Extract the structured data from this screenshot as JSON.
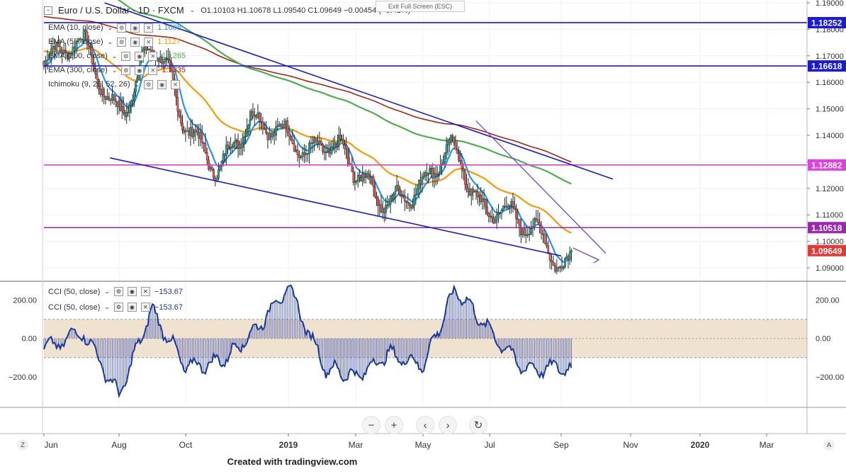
{
  "header": {
    "symbol": "Euro / U.S. Dollar · 1D · FXCM",
    "ohlc": "O1.10103  H1.10678  L1.09540  C1.09649  −0.00454 (−0.41%)",
    "fullscreen_hint": "Exit Full Screen (ESC)"
  },
  "legend": [
    {
      "label": "EMA (10, close)",
      "value": "1.1008",
      "color": "#2196f3"
    },
    {
      "label": "EMA (55, close)",
      "value": "1.1127",
      "color": "#ff9800"
    },
    {
      "label": "EMA (200, close)",
      "value": "1.1265",
      "color": "#4caf50"
    },
    {
      "label": "EMA (300, close)",
      "value": "1.1335",
      "color": "#a52714"
    },
    {
      "label": "Ichimoku (9, 26, 52, 26)",
      "value": "",
      "color": "#777777"
    }
  ],
  "cci_legend": [
    {
      "label": "CCI (50, close)",
      "value": "−153.67"
    },
    {
      "label": "CCI (50, close)",
      "value": "−153.67"
    }
  ],
  "footer": "Created with tradingview.com",
  "colors": {
    "up": "#26a69a",
    "down": "#ef5350",
    "candle": "#1f2a22",
    "ema10": "#2196f3",
    "ema55": "#ff9800",
    "ema200": "#4caf50",
    "ema300": "#a52714",
    "trend": "#1a1adb",
    "magenta": "#e040e0",
    "purple": "#9c27b0",
    "violet": "#7b52c7",
    "cci": "#1a3a9e",
    "band": "#ead9bf"
  },
  "icons": [
    "minimize-icon",
    "settings-icon",
    "eye-icon",
    "close-icon",
    "zoom-out-icon",
    "zoom-in-icon",
    "scroll-left-icon",
    "scroll-right-icon",
    "reset-icon"
  ],
  "chart_data": [
    {
      "type": "candlestick",
      "title": "Euro / U.S. Dollar · 1D · FXCM",
      "x_ticks": [
        "Jun",
        "Aug",
        "Oct",
        "2019",
        "Mar",
        "May",
        "Jul",
        "Sep",
        "Nov",
        "2020",
        "Mar"
      ],
      "y_ticks": [
        "1.19000",
        "1.18000",
        "1.17000",
        "1.16000",
        "1.15000",
        "1.14000",
        "1.13000",
        "1.12000",
        "1.11000",
        "1.10000",
        "1.09000"
      ],
      "ylim": [
        1.086,
        1.19
      ],
      "price_levels": [
        {
          "value": 1.18252,
          "label": "1.18252",
          "color": "#1a1adb"
        },
        {
          "value": 1.16618,
          "label": "1.16618",
          "color": "#1a1adb"
        },
        {
          "value": 1.12882,
          "label": "1.12882",
          "color": "#e040e0"
        },
        {
          "value": 1.10518,
          "label": "1.10518",
          "color": "#9c27b0"
        },
        {
          "value": 1.09649,
          "label": "1.09649",
          "color": "#e53935"
        }
      ],
      "close_series_monthly": [
        {
          "x": "Jun 2018",
          "close": 1.166
        },
        {
          "x": "Jul 2018",
          "close": 1.17
        },
        {
          "x": "Aug 2018",
          "close": 1.155
        },
        {
          "x": "Sep 2018",
          "close": 1.169
        },
        {
          "x": "Oct 2018",
          "close": 1.145
        },
        {
          "x": "Nov 2018",
          "close": 1.133
        },
        {
          "x": "Dec 2018",
          "close": 1.139
        },
        {
          "x": "Jan 2019",
          "close": 1.144
        },
        {
          "x": "Feb 2019",
          "close": 1.135
        },
        {
          "x": "Mar 2019",
          "close": 1.123
        },
        {
          "x": "Apr 2019",
          "close": 1.121
        },
        {
          "x": "May 2019",
          "close": 1.117
        },
        {
          "x": "Jun 2019",
          "close": 1.134
        },
        {
          "x": "Jul 2019",
          "close": 1.115
        },
        {
          "x": "Aug 2019",
          "close": 1.101
        },
        {
          "x": "Sep 2019",
          "close": 1.0965
        }
      ],
      "last": {
        "open": 1.10103,
        "high": 1.10678,
        "low": 1.0954,
        "close": 1.09649,
        "change": -0.00454,
        "change_pct": -0.41
      }
    },
    {
      "type": "line",
      "title": "CCI (50, close)",
      "y_ticks": [
        "200.00",
        "0.00",
        "−200.00"
      ],
      "ylim": [
        -330,
        280
      ],
      "band": [
        -100,
        100
      ],
      "last_value": -153.67,
      "values_monthly": [
        {
          "x": "Jun 2018",
          "cci": -60
        },
        {
          "x": "Jul 2018",
          "cci": 40
        },
        {
          "x": "Aug 2018",
          "cci": -300
        },
        {
          "x": "Sep 2018",
          "cci": 150
        },
        {
          "x": "Oct 2018",
          "cci": -150
        },
        {
          "x": "Nov 2018",
          "cci": -120
        },
        {
          "x": "Dec 2018",
          "cci": 30
        },
        {
          "x": "Jan 2019",
          "cci": 270
        },
        {
          "x": "Feb 2019",
          "cci": -150
        },
        {
          "x": "Mar 2019",
          "cci": -200
        },
        {
          "x": "Apr 2019",
          "cci": -80
        },
        {
          "x": "May 2019",
          "cci": -140
        },
        {
          "x": "Jun 2019",
          "cci": 260
        },
        {
          "x": "Jul 2019",
          "cci": 40
        },
        {
          "x": "Aug 2019",
          "cci": -160
        },
        {
          "x": "Sep 2019",
          "cci": -153.67
        }
      ]
    }
  ]
}
